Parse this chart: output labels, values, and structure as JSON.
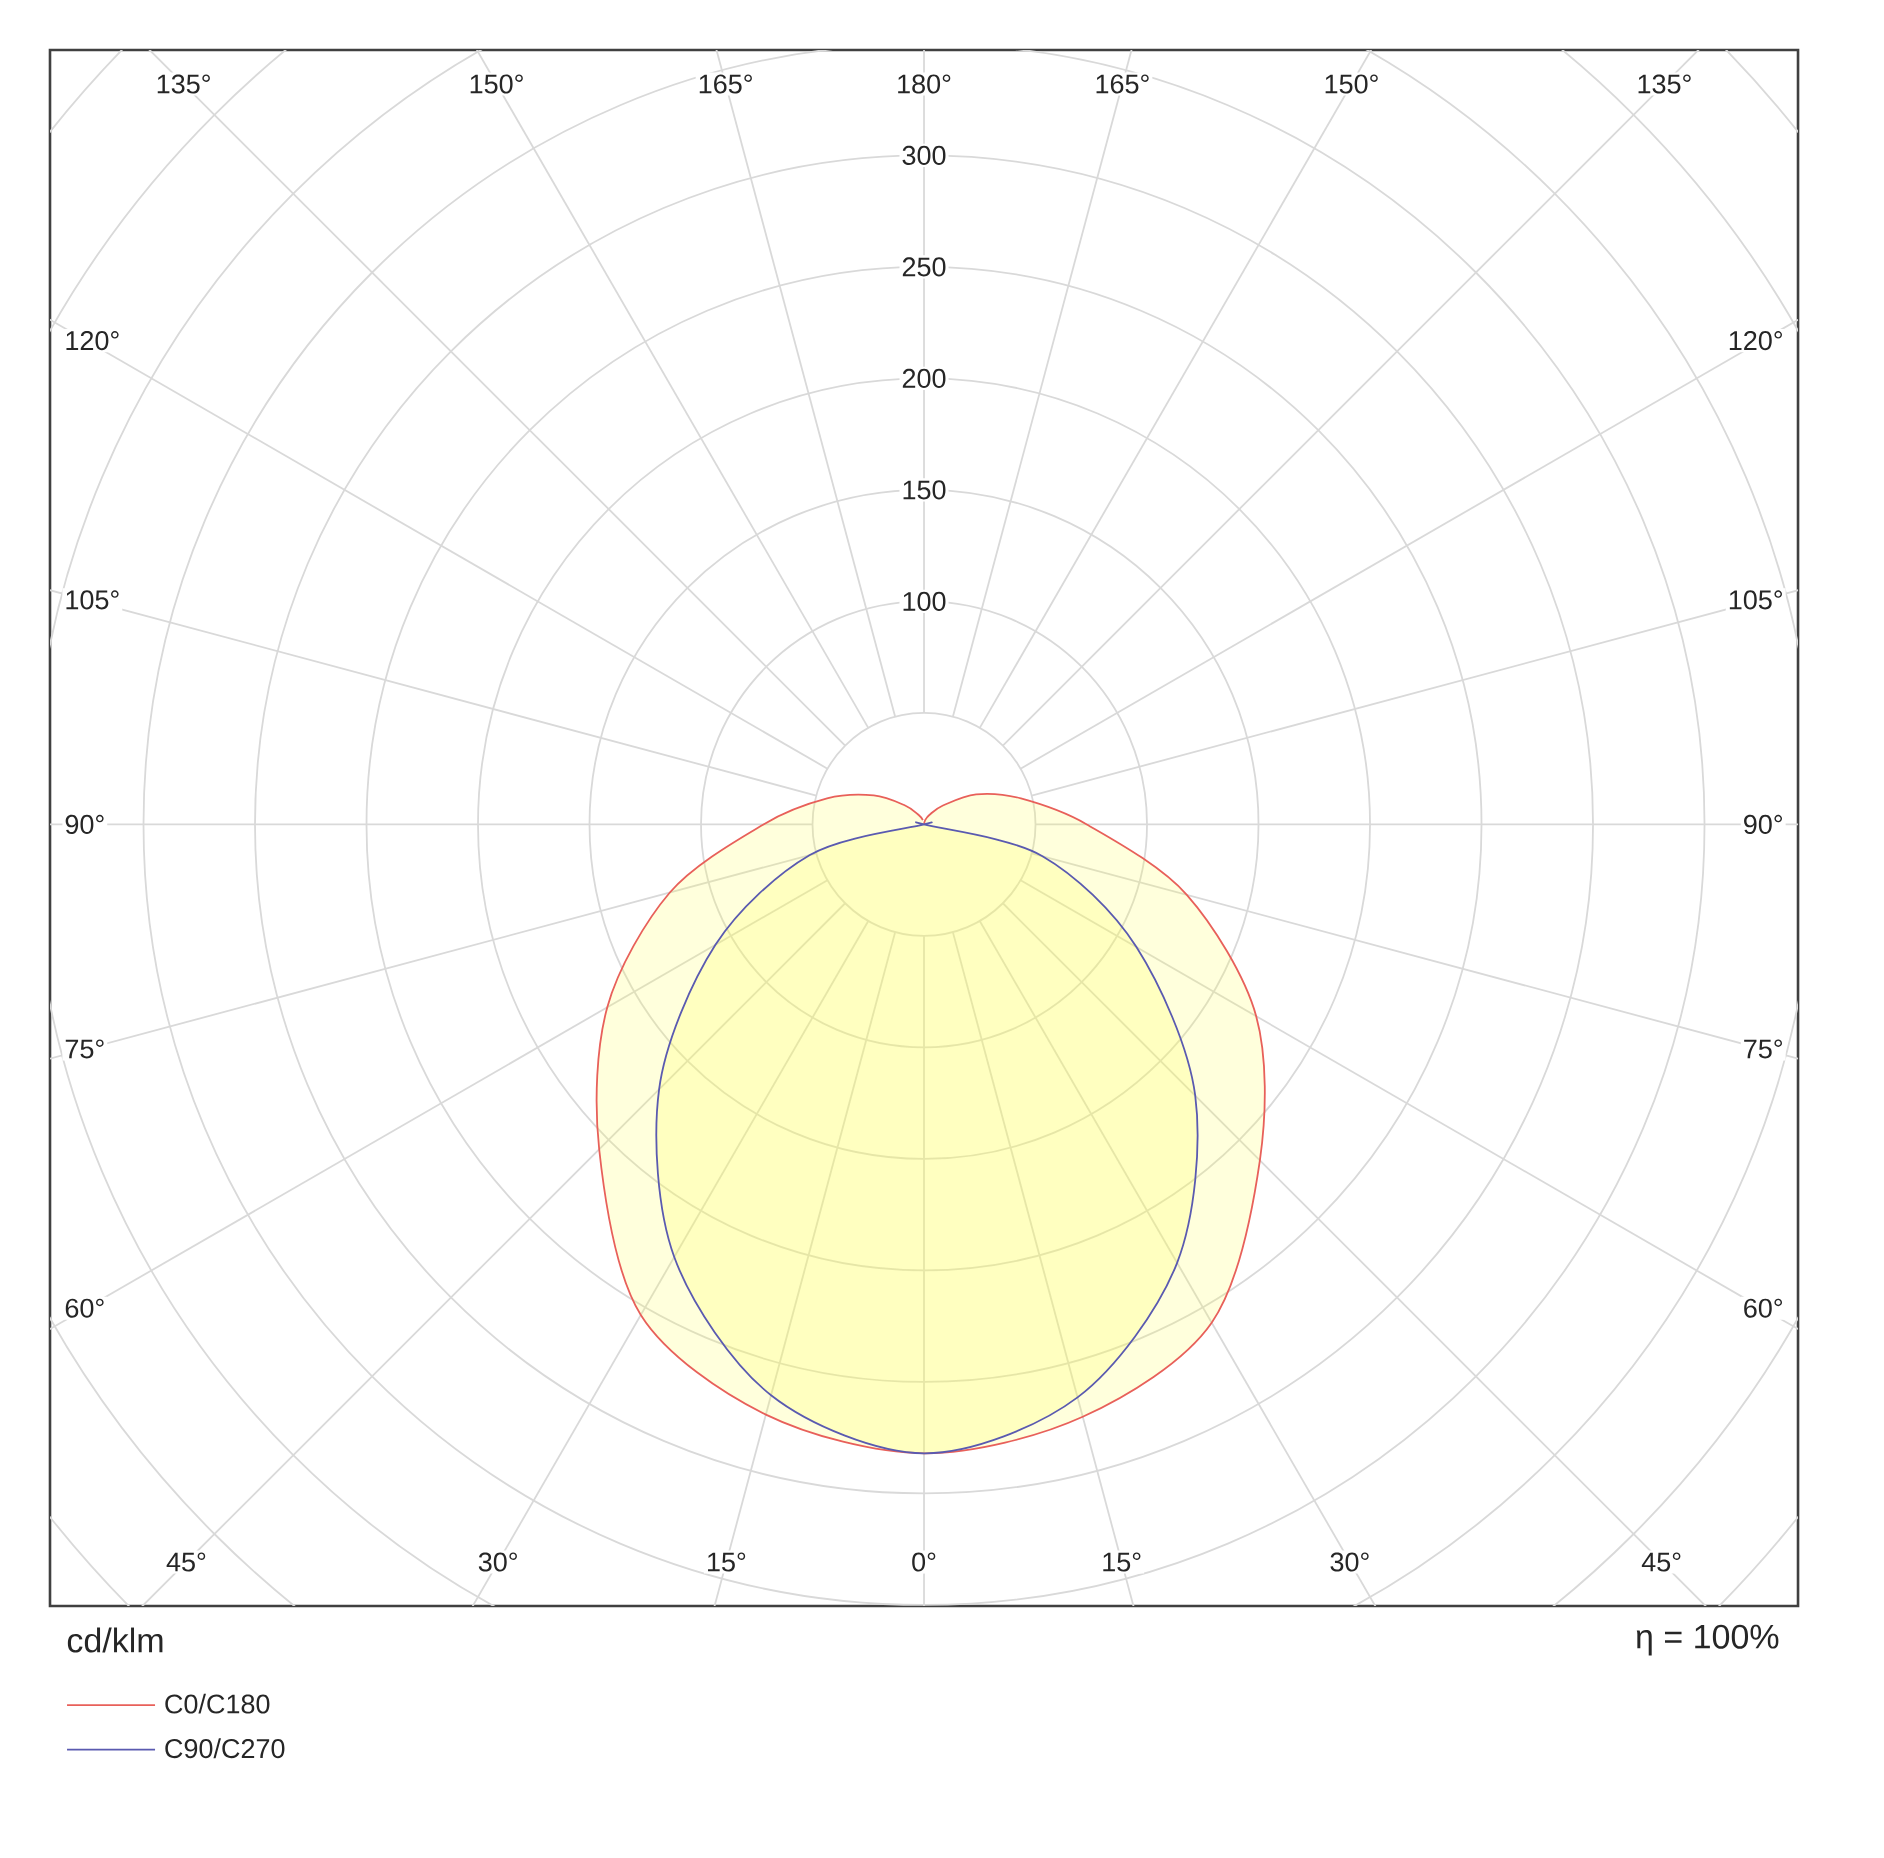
{
  "chart_data": {
    "type": "radar",
    "categories": [
      "180°",
      "165°",
      "150°",
      "135°",
      "120°",
      "105°",
      "90°",
      "75°",
      "60°",
      "45°",
      "30°",
      "15°",
      "0°",
      "15°",
      "30°",
      "45°",
      "60°",
      "75°",
      "90°",
      "105°",
      "120°",
      "135°",
      "150°",
      "165°"
    ],
    "series": [
      {
        "name": "C0/C180",
        "color": "#e8605a",
        "values": [
          0,
          2,
          5,
          12,
          27,
          45,
          73,
          122,
          172,
          213,
          258,
          275,
          282,
          274,
          254,
          206,
          164,
          118,
          72,
          45,
          26,
          12,
          5,
          2
        ]
      },
      {
        "name": "C90/C270",
        "color": "#5a5ab0",
        "values": [
          0,
          0,
          0,
          0,
          0,
          0,
          0,
          55,
          110,
          172,
          227,
          266,
          282,
          265,
          224,
          168,
          108,
          53,
          0,
          0,
          0,
          0,
          0,
          0
        ]
      }
    ],
    "ylim": [
      0,
      500
    ],
    "yticks": [
      100,
      150,
      200,
      250,
      300
    ],
    "grid": true,
    "legend": "bottom left",
    "ylabel": "cd/klm",
    "annotations": [
      "η = 100%"
    ]
  }
}
